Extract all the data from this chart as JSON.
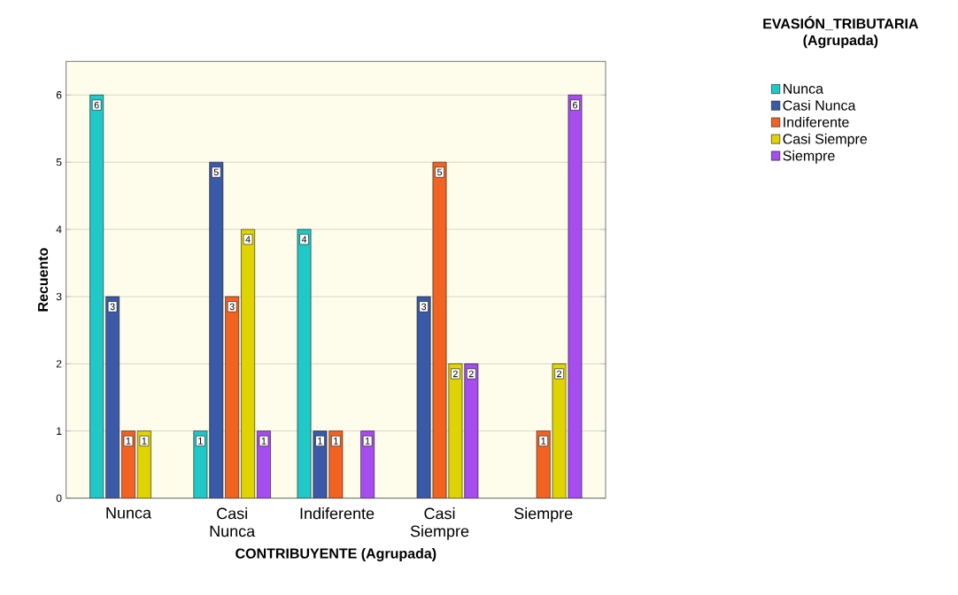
{
  "chart_data": {
    "type": "bar",
    "xlabel": "CONTRIBUYENTE (Agrupada)",
    "ylabel": "Recuento",
    "legend_title": "EVASIÓN_TRIBUTARIA (Agrupada)",
    "categories": [
      "Nunca",
      "Casi Nunca",
      "Indiferente",
      "Casi Siempre",
      "Siempre"
    ],
    "series": [
      {
        "name": "Nunca",
        "color": "#20c8c8",
        "values": [
          6,
          1,
          4,
          null,
          null
        ]
      },
      {
        "name": "Casi Nunca",
        "color": "#3a5aa8",
        "values": [
          3,
          5,
          1,
          3,
          null
        ]
      },
      {
        "name": "Indiferente",
        "color": "#f26322",
        "values": [
          1,
          3,
          1,
          5,
          1
        ]
      },
      {
        "name": "Casi Siempre",
        "color": "#e0d400",
        "values": [
          1,
          4,
          null,
          2,
          2
        ]
      },
      {
        "name": "Siempre",
        "color": "#a64df0",
        "values": [
          null,
          1,
          1,
          2,
          6
        ]
      }
    ],
    "ylim": [
      0,
      6.5
    ],
    "yticks": [
      0,
      1,
      2,
      3,
      4,
      5,
      6
    ],
    "grid": "y",
    "legend": "top right",
    "data_labels": true
  }
}
